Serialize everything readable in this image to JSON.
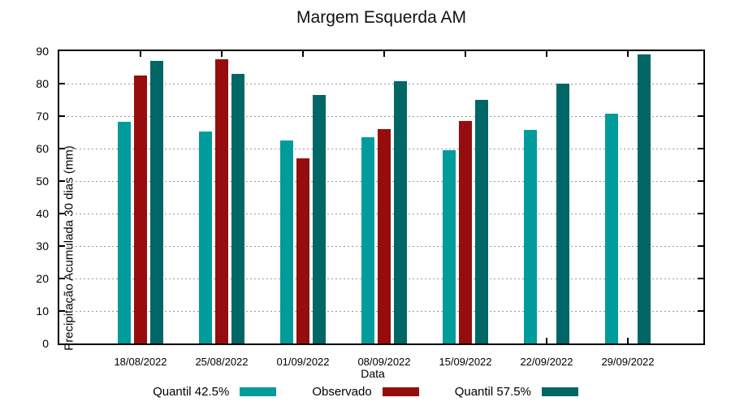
{
  "title": "Margem Esquerda AM",
  "chart_data": {
    "type": "bar",
    "title": "Margem Esquerda AM",
    "xlabel": "Data",
    "ylabel": "Precipitação Acumulada 30 dias (mm)",
    "ylim": [
      0,
      90
    ],
    "yticks": [
      0,
      10,
      20,
      30,
      40,
      50,
      60,
      70,
      80,
      90
    ],
    "grid": "horizontal-dotted",
    "legend_position": "bottom",
    "categories": [
      "18/08/2022",
      "25/08/2022",
      "01/09/2022",
      "08/09/2022",
      "15/09/2022",
      "22/09/2022",
      "29/09/2022"
    ],
    "series": [
      {
        "name": "Quantil 42.5%",
        "color": "#009c9c",
        "values": [
          68.3,
          65.2,
          62.5,
          63.5,
          59.5,
          65.7,
          70.7
        ]
      },
      {
        "name": "Observado",
        "color": "#970d0d",
        "values": [
          82.5,
          87.5,
          57.0,
          66.0,
          68.5,
          null,
          null
        ]
      },
      {
        "name": "Quantil 57.5%",
        "color": "#006666",
        "values": [
          87.0,
          83.0,
          76.5,
          80.7,
          75.0,
          80.0,
          89.0
        ]
      }
    ],
    "colors": {
      "quantil_425": "#009c9c",
      "observado": "#970d0d",
      "quantil_575": "#006666",
      "gridline": "#9a9a9a",
      "axis": "#000000"
    }
  }
}
